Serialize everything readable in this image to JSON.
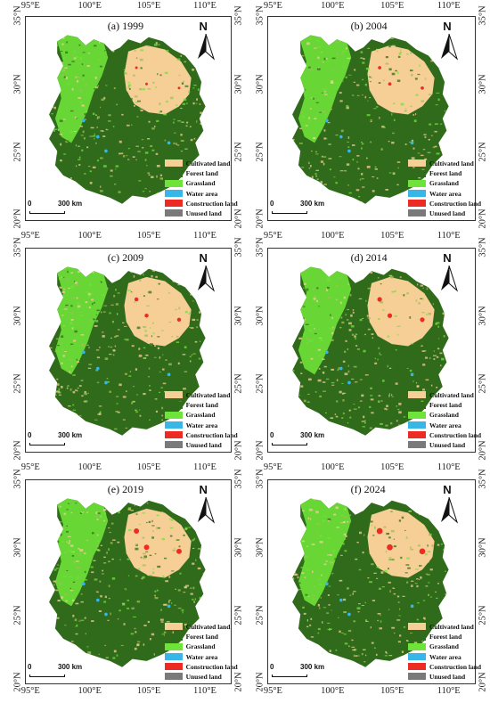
{
  "panels": [
    {
      "title": "(a) 1999"
    },
    {
      "title": "(b) 2004"
    },
    {
      "title": "(c) 2009"
    },
    {
      "title": "(d) 2014"
    },
    {
      "title": "(e) 2019"
    },
    {
      "title": "(f) 2024"
    }
  ],
  "lon_ticks": [
    "95°E",
    "100°E",
    "105°E",
    "110°E"
  ],
  "lat_ticks": [
    "35°N",
    "30°N",
    "25°N",
    "20°N"
  ],
  "north_label": "N",
  "scale_bar": {
    "zero": "0",
    "distance": "300 km"
  },
  "legend": [
    {
      "label": "Cultivated land",
      "color": "#f5cf95"
    },
    {
      "label": "Forest land",
      "color": "#2f6b1a"
    },
    {
      "label": "Grassland",
      "color": "#6fe33a"
    },
    {
      "label": "Water area",
      "color": "#38b6e8"
    },
    {
      "label": "Construction land",
      "color": "#ec2b25"
    },
    {
      "label": "Unused land",
      "color": "#7a7a7a"
    }
  ]
}
